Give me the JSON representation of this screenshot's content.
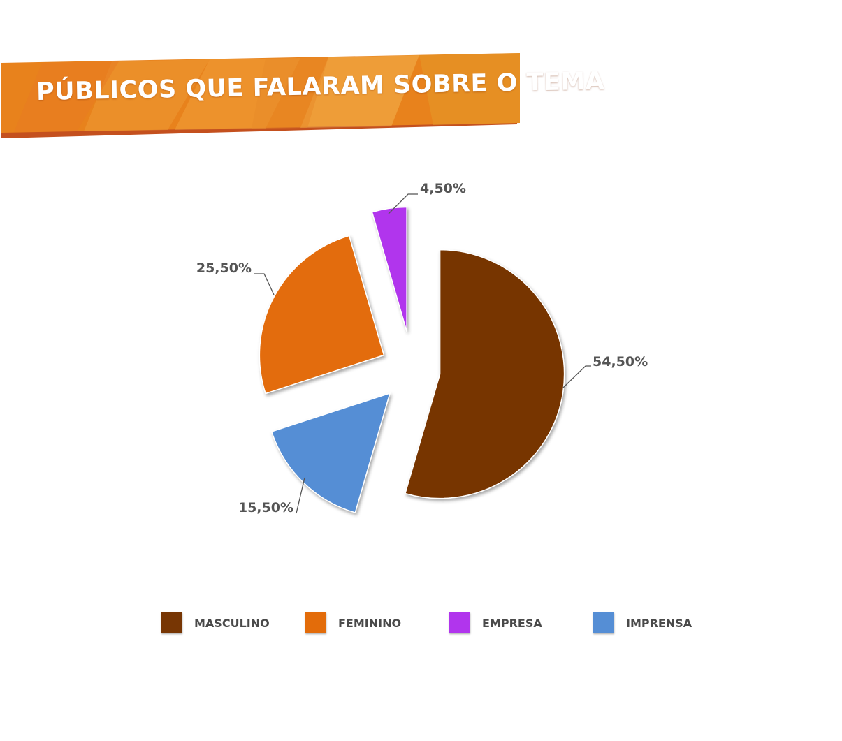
{
  "title": "PÚBLICOS QUE FALARAM SOBRE O TEMA",
  "colors": {
    "banner_orange": "#E8821C",
    "banner_shadow": "#C4501E",
    "masculino": "#773604",
    "feminino": "#E36C0A",
    "empresa": "#B135ED",
    "imprensa": "#558ED5",
    "label_text": "#555555"
  },
  "chart_data": {
    "type": "pie",
    "exploded": true,
    "slices": [
      {
        "name": "MASCULINO",
        "value": 54.5,
        "label": "54,50%"
      },
      {
        "name": "IMPRENSA",
        "value": 15.5,
        "label": "15,50%"
      },
      {
        "name": "FEMININO",
        "value": 25.5,
        "label": "25,50%"
      },
      {
        "name": "EMPRESA",
        "value": 4.5,
        "label": "4,50%"
      }
    ],
    "legend": [
      "MASCULINO",
      "FEMININO",
      "EMPRESA",
      "IMPRENSA"
    ],
    "legend_position": "bottom"
  }
}
